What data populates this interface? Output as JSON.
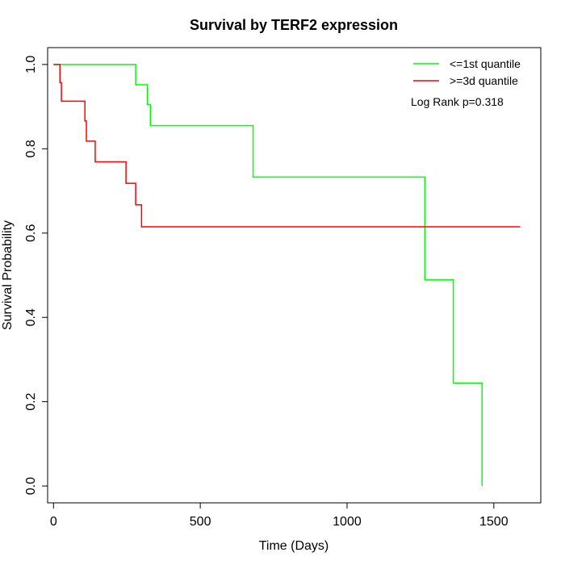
{
  "chart_data": {
    "type": "line",
    "title": "Survival by TERF2 expression",
    "xlabel": "Time (Days)",
    "ylabel": "Survival Probability",
    "xlim": [
      -20,
      1660
    ],
    "ylim": [
      -0.04,
      1.04
    ],
    "xticks": [
      0,
      500,
      1000,
      1500
    ],
    "yticks": [
      0.0,
      0.2,
      0.4,
      0.6,
      0.8,
      1.0
    ],
    "ytick_labels": [
      "0.0",
      "0.2",
      "0.4",
      "0.6",
      "0.8",
      "1.0"
    ],
    "grid": false,
    "legend_position": "top-right",
    "annotation": "Log Rank p=0.318",
    "series": [
      {
        "name": "<=1st quantile",
        "color": "#00ff00",
        "step": true,
        "x": [
          0,
          280,
          320,
          330,
          680,
          1265,
          1362,
          1460,
          1460
        ],
        "y": [
          1.0,
          0.952,
          0.905,
          0.855,
          0.733,
          0.489,
          0.244,
          0.0,
          0.0
        ]
      },
      {
        "name": ">=3d quantile",
        "color": "#ff0000",
        "step": true,
        "x": [
          0,
          22,
          27,
          107,
          112,
          142,
          247,
          280,
          300,
          1590
        ],
        "y": [
          1.0,
          0.957,
          0.913,
          0.866,
          0.818,
          0.769,
          0.718,
          0.667,
          0.615,
          0.615
        ]
      }
    ]
  }
}
